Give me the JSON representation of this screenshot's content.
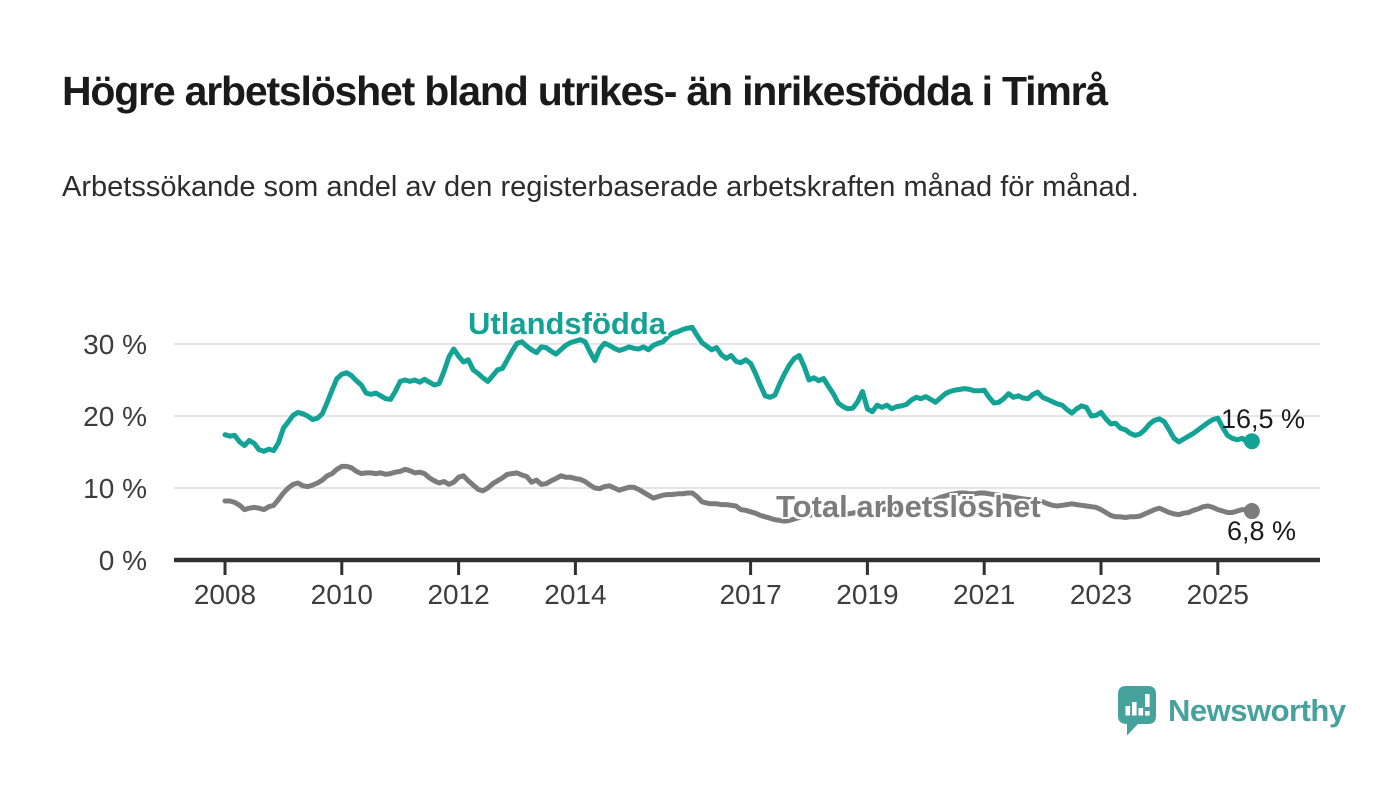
{
  "title": "Högre arbetslöshet bland utrikes- än inrikesfödda i Timrå",
  "subtitle": "Arbetssökande som andel av den registerbaserade arbetskraften månad för månad.",
  "chart_data": {
    "type": "line",
    "title": "Högre arbetslöshet bland utrikes- än inrikesfödda i Timrå",
    "xlabel": "",
    "ylabel": "Arbetssökande som andel av den registerbaserade arbetskraften",
    "x_start": "2008-01",
    "x_end": "2025-08",
    "x_step_months": 1,
    "x_tick_years": [
      2008,
      2010,
      2012,
      2014,
      2017,
      2019,
      2021,
      2023,
      2025
    ],
    "x_tick_labels": [
      "2008",
      "2010",
      "2012",
      "2014",
      "2017",
      "2019",
      "2021",
      "2023",
      "2025"
    ],
    "y_tick_values": [
      0,
      10,
      20,
      30
    ],
    "y_tick_labels": [
      "0 %",
      "10 %",
      "20 %",
      "30 %"
    ],
    "ylim": [
      0,
      34
    ],
    "grid": true,
    "legend_position": "inline-labels",
    "axis_color": "#303030",
    "grid_color": "#dedede",
    "tick_text_color": "#3d3d3d",
    "series": [
      {
        "name": "Utlandsfödda",
        "color": "#13a296",
        "end_label": "16,5 %",
        "end_value": 16.5,
        "values": [
          17.4,
          17.2,
          17.3,
          16.4,
          15.9,
          16.6,
          16.2,
          15.3,
          15.1,
          15.4,
          15.2,
          16.3,
          18.3,
          19.2,
          20.1,
          20.5,
          20.3,
          20.0,
          19.5,
          19.7,
          20.3,
          21.9,
          23.6,
          25.2,
          25.8,
          26.0,
          25.6,
          24.9,
          24.3,
          23.2,
          23.0,
          23.2,
          22.8,
          22.4,
          22.3,
          23.4,
          24.8,
          25.0,
          24.8,
          25.0,
          24.7,
          25.1,
          24.7,
          24.3,
          24.5,
          26.2,
          28.2,
          29.3,
          28.3,
          27.5,
          27.8,
          26.4,
          25.9,
          25.3,
          24.8,
          25.6,
          26.4,
          26.6,
          27.8,
          29.0,
          30.1,
          30.3,
          29.7,
          29.2,
          28.8,
          29.6,
          29.5,
          29.0,
          28.6,
          29.2,
          29.8,
          30.2,
          30.4,
          30.6,
          30.3,
          28.9,
          27.7,
          29.3,
          30.1,
          29.8,
          29.4,
          29.1,
          29.3,
          29.6,
          29.4,
          29.3,
          29.6,
          29.2,
          29.8,
          30.1,
          30.3,
          31.0,
          31.5,
          31.7,
          32.0,
          32.2,
          32.3,
          31.2,
          30.2,
          29.7,
          29.2,
          29.5,
          28.5,
          28.0,
          28.4,
          27.6,
          27.4,
          27.8,
          27.3,
          25.9,
          24.3,
          22.8,
          22.6,
          22.9,
          24.5,
          25.9,
          27.1,
          28.0,
          28.4,
          26.9,
          25.0,
          25.3,
          24.9,
          25.2,
          24.1,
          23.1,
          21.8,
          21.3,
          21.0,
          21.1,
          22.0,
          23.4,
          21.0,
          20.6,
          21.5,
          21.2,
          21.5,
          21.0,
          21.3,
          21.4,
          21.6,
          22.2,
          22.6,
          22.4,
          22.7,
          22.3,
          21.9,
          22.5,
          23.1,
          23.4,
          23.6,
          23.7,
          23.8,
          23.7,
          23.5,
          23.5,
          23.6,
          22.6,
          21.8,
          21.9,
          22.4,
          23.1,
          22.6,
          22.8,
          22.5,
          22.4,
          23.0,
          23.3,
          22.6,
          22.3,
          22.0,
          21.7,
          21.5,
          20.9,
          20.4,
          21.0,
          21.4,
          21.2,
          20.0,
          20.1,
          20.5,
          19.6,
          18.9,
          19.0,
          18.3,
          18.1,
          17.6,
          17.3,
          17.5,
          18.1,
          18.9,
          19.4,
          19.6,
          19.2,
          18.1,
          16.9,
          16.4,
          16.8,
          17.2,
          17.6,
          18.1,
          18.6,
          19.1,
          19.5,
          19.7,
          18.4,
          17.3,
          16.9,
          16.7,
          16.9,
          16.4,
          16.5
        ]
      },
      {
        "name": "Total arbetslöshet",
        "color": "#7c7c7c",
        "end_label": "6,8 %",
        "end_value": 6.8,
        "values": [
          8.2,
          8.2,
          8.0,
          7.6,
          7.0,
          7.2,
          7.3,
          7.2,
          7.0,
          7.4,
          7.6,
          8.4,
          9.3,
          10.0,
          10.5,
          10.7,
          10.3,
          10.2,
          10.4,
          10.7,
          11.1,
          11.7,
          12.0,
          12.6,
          13.0,
          13.0,
          12.8,
          12.3,
          12.0,
          12.1,
          12.1,
          12.0,
          12.1,
          11.9,
          12.0,
          12.2,
          12.3,
          12.6,
          12.4,
          12.1,
          12.2,
          12.0,
          11.4,
          11.0,
          10.7,
          10.9,
          10.5,
          10.8,
          11.5,
          11.7,
          11.0,
          10.4,
          9.8,
          9.6,
          10.0,
          10.6,
          11.0,
          11.4,
          11.9,
          12.0,
          12.1,
          11.8,
          11.6,
          10.8,
          11.1,
          10.5,
          10.6,
          11.0,
          11.3,
          11.7,
          11.5,
          11.5,
          11.3,
          11.2,
          10.9,
          10.4,
          10.0,
          9.9,
          10.2,
          10.3,
          10.0,
          9.7,
          9.9,
          10.1,
          10.1,
          9.8,
          9.4,
          9.0,
          8.6,
          8.8,
          9.0,
          9.1,
          9.1,
          9.2,
          9.2,
          9.3,
          9.3,
          8.8,
          8.1,
          7.9,
          7.8,
          7.8,
          7.7,
          7.7,
          7.6,
          7.5,
          7.0,
          6.9,
          6.7,
          6.5,
          6.2,
          6.0,
          5.8,
          5.6,
          5.5,
          5.4,
          5.5,
          5.7,
          5.9,
          6.1,
          6.2,
          6.3,
          6.4,
          6.4,
          6.3,
          6.2,
          6.2,
          6.3,
          6.4,
          6.5,
          6.7,
          6.9,
          7.0,
          7.1,
          7.1,
          7.0,
          7.1,
          7.2,
          7.2,
          7.3,
          7.4,
          7.5,
          7.6,
          7.7,
          7.8,
          8.1,
          8.4,
          8.7,
          8.9,
          9.1,
          9.2,
          9.3,
          9.3,
          9.2,
          9.2,
          9.3,
          9.3,
          9.2,
          9.1,
          9.0,
          8.9,
          8.8,
          8.7,
          8.6,
          8.5,
          8.4,
          8.3,
          8.2,
          8.1,
          7.8,
          7.6,
          7.5,
          7.6,
          7.7,
          7.8,
          7.7,
          7.6,
          7.5,
          7.4,
          7.3,
          7.0,
          6.6,
          6.2,
          6.0,
          6.0,
          5.9,
          6.0,
          6.0,
          6.1,
          6.4,
          6.7,
          7.0,
          7.2,
          6.9,
          6.6,
          6.4,
          6.3,
          6.5,
          6.6,
          6.9,
          7.1,
          7.4,
          7.5,
          7.3,
          7.0,
          6.8,
          6.6,
          6.6,
          6.8,
          7.0,
          7.0,
          6.8
        ]
      }
    ]
  },
  "footer": {
    "brand": "Newsworthy",
    "brand_color": "#46a29c"
  }
}
